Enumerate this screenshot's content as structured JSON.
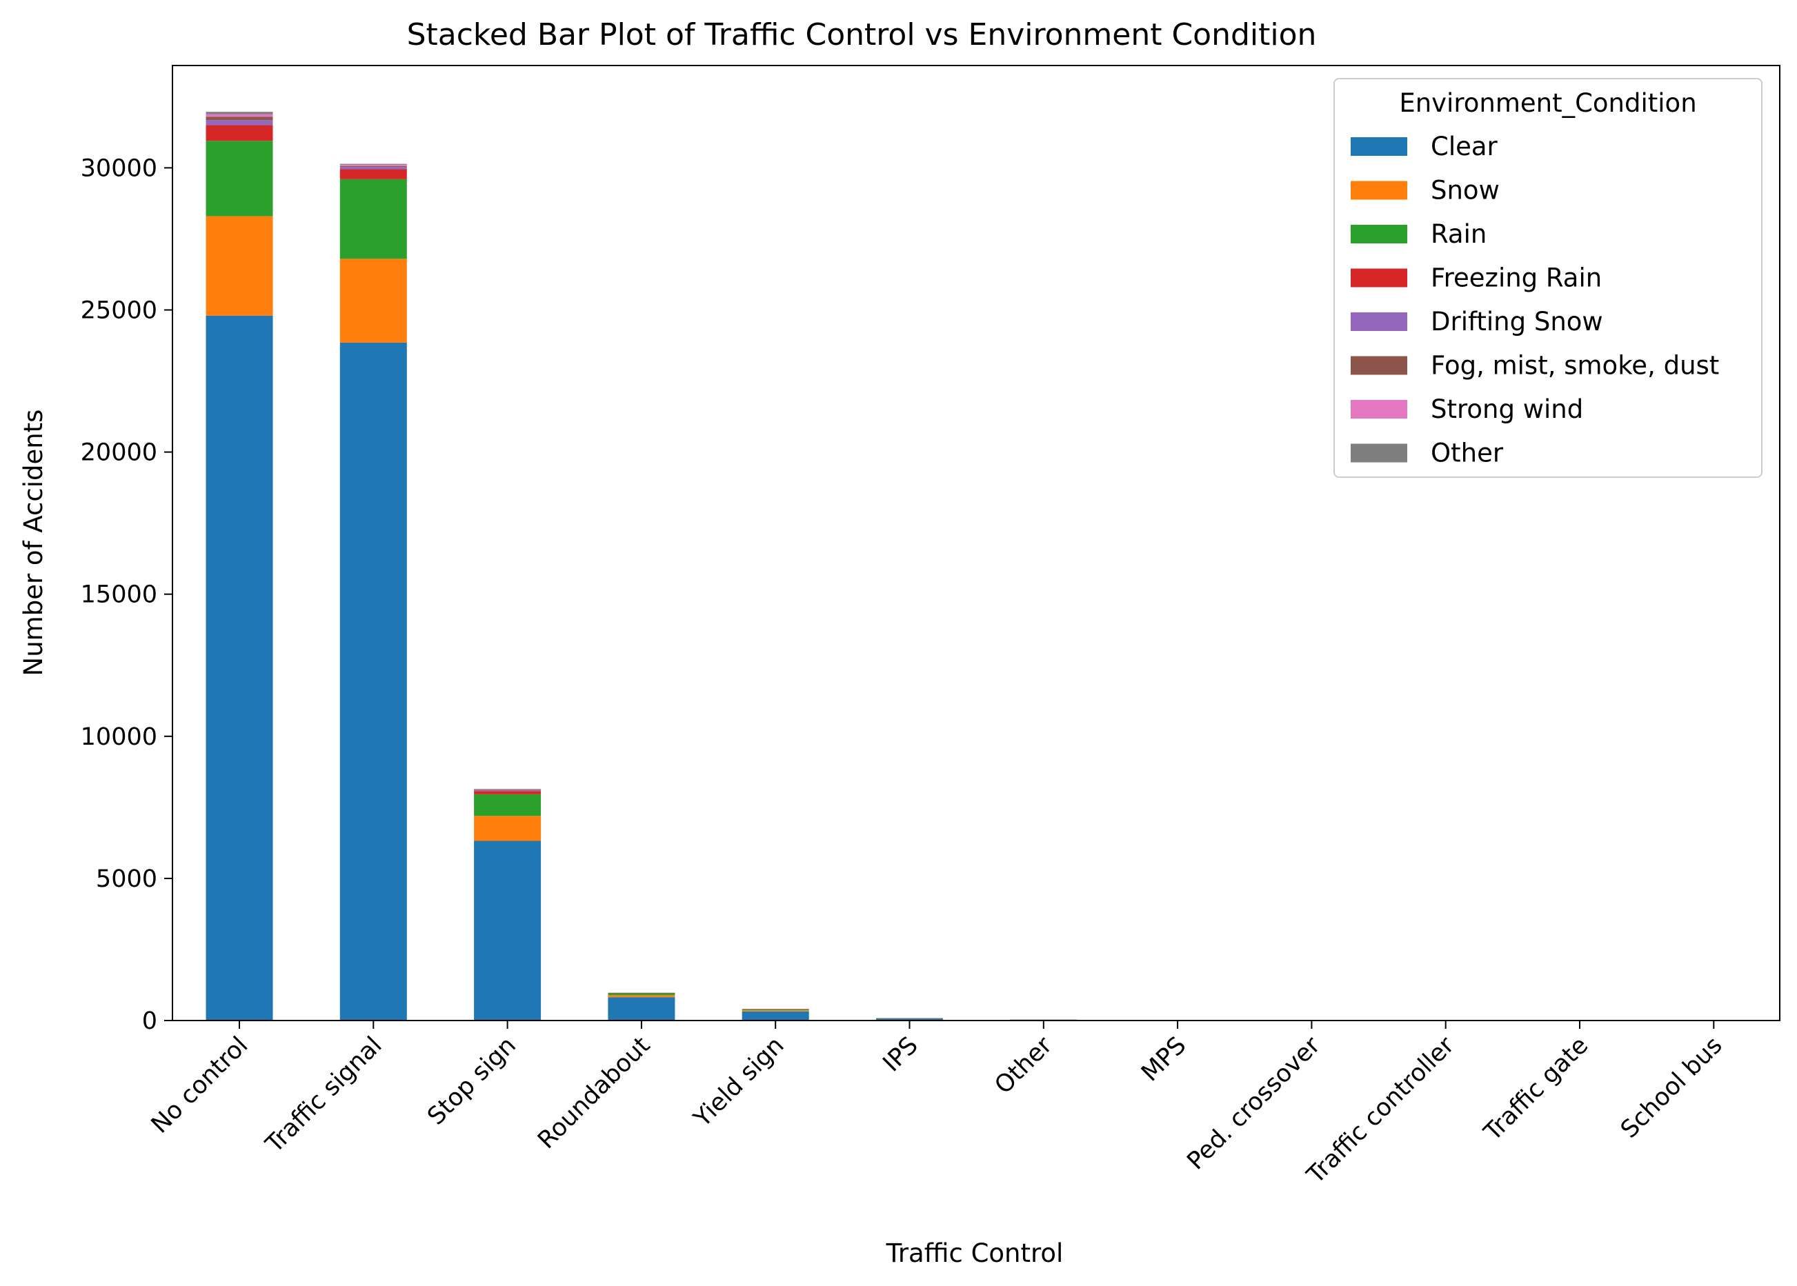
{
  "chart_data": {
    "type": "bar",
    "stacked": true,
    "title": "Stacked Bar Plot of Traffic Control vs Environment Condition",
    "xlabel": "Traffic Control",
    "ylabel": "Number of Accidents",
    "ylim": [
      0,
      33600
    ],
    "yticks": [
      0,
      5000,
      10000,
      15000,
      20000,
      25000,
      30000
    ],
    "ytick_labels": [
      "0",
      "5000",
      "10000",
      "15000",
      "20000",
      "25000",
      "30000"
    ],
    "grid": false,
    "legend": {
      "title": "Environment_Condition",
      "placement": "top-right"
    },
    "categories": [
      "No control",
      "Traffic signal",
      "Stop sign",
      "Roundabout",
      "Yield sign",
      "IPS",
      "Other",
      "MPS",
      "Ped. crossover",
      "Traffic controller",
      "Traffic gate",
      "School bus"
    ],
    "series": [
      {
        "name": "Clear",
        "color": "#1f77b4",
        "values": [
          24800,
          23850,
          6320,
          820,
          320,
          70,
          30,
          6,
          4,
          3,
          2,
          1
        ]
      },
      {
        "name": "Snow",
        "color": "#ff7f0e",
        "values": [
          3500,
          2950,
          880,
          70,
          40,
          8,
          3,
          1,
          0,
          0,
          0,
          0
        ]
      },
      {
        "name": "Rain",
        "color": "#2ca02c",
        "values": [
          2650,
          2800,
          760,
          70,
          30,
          8,
          3,
          1,
          0,
          0,
          0,
          0
        ]
      },
      {
        "name": "Freezing Rain",
        "color": "#d62728",
        "values": [
          550,
          350,
          110,
          10,
          10,
          2,
          1,
          0,
          0,
          0,
          0,
          0
        ]
      },
      {
        "name": "Drifting Snow",
        "color": "#9467bd",
        "values": [
          180,
          80,
          20,
          5,
          3,
          1,
          0,
          0,
          0,
          0,
          0,
          0
        ]
      },
      {
        "name": "Fog, mist, smoke, dust",
        "color": "#8c564b",
        "values": [
          120,
          30,
          20,
          3,
          3,
          1,
          0,
          0,
          0,
          0,
          0,
          0
        ]
      },
      {
        "name": "Strong wind",
        "color": "#e377c2",
        "values": [
          90,
          50,
          20,
          2,
          2,
          0,
          0,
          0,
          0,
          0,
          0,
          0
        ]
      },
      {
        "name": "Other",
        "color": "#7f7f7f",
        "values": [
          80,
          30,
          20,
          2,
          2,
          0,
          0,
          0,
          0,
          0,
          0,
          0
        ]
      }
    ]
  }
}
